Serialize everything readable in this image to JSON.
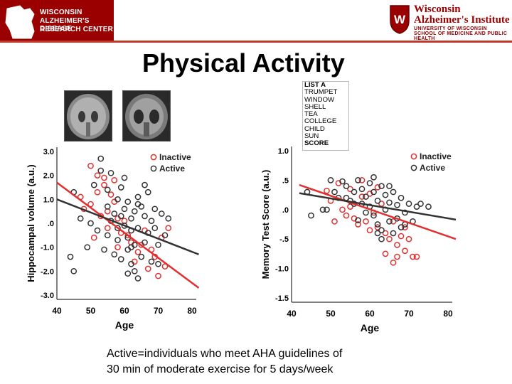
{
  "header": {
    "left_logo_lines": [
      "WISCONSIN",
      "ALZHEIMER'S DISEASE",
      "RESEARCH CENTER"
    ],
    "right_logo_title": [
      "Wisconsin",
      "Alzheimer's Institute"
    ],
    "right_logo_sub": [
      "UNIVERSITY OF WISCONSIN",
      "SCHOOL OF MEDICINE AND PUBLIC HEALTH"
    ],
    "brand_color": "#9b0000"
  },
  "slide_title": "Physical Activity",
  "word_list": {
    "header": "LIST A",
    "items": [
      "TRUMPET",
      "WINDOW",
      "SHELL",
      "TEA",
      "COLLEGE",
      "CHILD",
      "SUN"
    ],
    "footer": "SCORE"
  },
  "footnote": [
    "Active=individuals who meet AHA guidelines of",
    "30 min of moderate exercise for 5 days/week"
  ],
  "chart_data": [
    {
      "type": "scatter",
      "title": "",
      "xlabel": "Age",
      "ylabel": "Hippocampal volume (a.u.)",
      "xlim": [
        40,
        80
      ],
      "ylim": [
        -3.0,
        3.0
      ],
      "x_ticks": [
        "40",
        "50",
        "60",
        "70",
        "80"
      ],
      "y_ticks": [
        "3.0",
        "2.0",
        "1.0",
        ".0",
        "-1.0",
        "-2.0",
        "-3.0"
      ],
      "y_tick_values": [
        3,
        2,
        1,
        0,
        -1,
        -2,
        -3
      ],
      "legend_position": "top-right",
      "series": [
        {
          "name": "Inactive",
          "color": "#e03030",
          "regression": [
            [
              40,
              1.7
            ],
            [
              82,
              -2.7
            ]
          ],
          "points": [
            [
              47,
              1.1
            ],
            [
              48,
              0.6
            ],
            [
              50,
              0.8
            ],
            [
              52,
              1.3
            ],
            [
              52,
              2.0
            ],
            [
              53,
              0.3
            ],
            [
              54,
              1.6
            ],
            [
              55,
              0.5
            ],
            [
              56,
              1.2
            ],
            [
              57,
              0.9
            ],
            [
              58,
              0.2
            ],
            [
              59,
              -0.4
            ],
            [
              60,
              0.1
            ],
            [
              62,
              -0.8
            ],
            [
              63,
              -1.6
            ],
            [
              64,
              -1.2
            ],
            [
              66,
              -0.3
            ],
            [
              67,
              -1.9
            ],
            [
              68,
              -1.1
            ],
            [
              70,
              -2.2
            ],
            [
              71,
              -0.6
            ],
            [
              72,
              -1.8
            ],
            [
              73,
              -0.2
            ],
            [
              51,
              -0.6
            ],
            [
              55,
              -0.2
            ],
            [
              58,
              -1.0
            ],
            [
              61,
              -0.5
            ],
            [
              65,
              -0.9
            ],
            [
              69,
              -1.4
            ],
            [
              54,
              1.9
            ],
            [
              50,
              2.4
            ],
            [
              57,
              1.8
            ]
          ]
        },
        {
          "name": "Active",
          "color": "#333333",
          "regression": [
            [
              40,
              1.0
            ],
            [
              82,
              -1.3
            ]
          ],
          "points": [
            [
              44,
              -1.4
            ],
            [
              45,
              1.3
            ],
            [
              45,
              -2.0
            ],
            [
              47,
              0.2
            ],
            [
              49,
              -1.0
            ],
            [
              50,
              0.0
            ],
            [
              51,
              1.6
            ],
            [
              52,
              -0.3
            ],
            [
              53,
              2.7
            ],
            [
              53,
              2.2
            ],
            [
              54,
              -1.1
            ],
            [
              55,
              0.7
            ],
            [
              55,
              -0.5
            ],
            [
              56,
              2.1
            ],
            [
              56,
              0.1
            ],
            [
              57,
              0.4
            ],
            [
              57,
              -1.3
            ],
            [
              58,
              1.0
            ],
            [
              58,
              -0.7
            ],
            [
              59,
              0.3
            ],
            [
              59,
              -1.5
            ],
            [
              60,
              0.6
            ],
            [
              60,
              -0.1
            ],
            [
              61,
              0.9
            ],
            [
              61,
              -1.1
            ],
            [
              61,
              -0.6
            ],
            [
              62,
              0.2
            ],
            [
              62,
              -0.3
            ],
            [
              62,
              -1.7
            ],
            [
              63,
              0.5
            ],
            [
              63,
              -0.9
            ],
            [
              64,
              1.1
            ],
            [
              64,
              -0.2
            ],
            [
              64,
              -2.3
            ],
            [
              65,
              0.7
            ],
            [
              65,
              -1.4
            ],
            [
              66,
              0.3
            ],
            [
              66,
              -0.8
            ],
            [
              67,
              1.3
            ],
            [
              67,
              -0.4
            ],
            [
              68,
              0.1
            ],
            [
              68,
              -1.6
            ],
            [
              69,
              0.6
            ],
            [
              69,
              -0.2
            ],
            [
              70,
              -0.9
            ],
            [
              71,
              0.4
            ],
            [
              72,
              -0.5
            ],
            [
              73,
              0.2
            ],
            [
              60,
              1.9
            ],
            [
              63,
              -2.0
            ],
            [
              58,
              -0.2
            ],
            [
              66,
              1.6
            ],
            [
              70,
              -1.7
            ],
            [
              55,
              1.4
            ],
            [
              61,
              -2.1
            ],
            [
              59,
              1.5
            ],
            [
              64,
              0.8
            ],
            [
              62,
              -1.0
            ]
          ]
        }
      ]
    },
    {
      "type": "scatter",
      "title": "",
      "xlabel": "Age",
      "ylabel": "Memory Test Score (a.u.)",
      "xlim": [
        40,
        80
      ],
      "ylim": [
        -1.5,
        1.0
      ],
      "x_ticks": [
        "40",
        "50",
        "60",
        "70",
        "80"
      ],
      "y_ticks": [
        "1.0",
        ".5",
        ".0",
        "-.5",
        "-1.0",
        "-1.5"
      ],
      "y_tick_values": [
        1.0,
        0.5,
        0.0,
        -0.5,
        -1.0,
        -1.5
      ],
      "legend_position": "top-right",
      "series": [
        {
          "name": "Inactive",
          "color": "#e03030",
          "regression": [
            [
              42,
              0.42
            ],
            [
              82,
              -0.5
            ]
          ],
          "points": [
            [
              49,
              0.32
            ],
            [
              50,
              0.15
            ],
            [
              52,
              0.45
            ],
            [
              53,
              0.0
            ],
            [
              54,
              -0.1
            ],
            [
              55,
              0.35
            ],
            [
              56,
              -0.15
            ],
            [
              57,
              -0.25
            ],
            [
              58,
              0.22
            ],
            [
              59,
              -0.2
            ],
            [
              60,
              -0.35
            ],
            [
              61,
              -0.05
            ],
            [
              62,
              -0.3
            ],
            [
              63,
              0.1
            ],
            [
              64,
              -0.4
            ],
            [
              65,
              -0.5
            ],
            [
              66,
              -0.2
            ],
            [
              67,
              -0.6
            ],
            [
              68,
              -0.45
            ],
            [
              69,
              -0.7
            ],
            [
              70,
              -0.5
            ],
            [
              71,
              -0.8
            ],
            [
              72,
              -0.8
            ],
            [
              66,
              -0.9
            ],
            [
              64,
              -0.75
            ],
            [
              67,
              -0.8
            ],
            [
              51,
              -0.2
            ],
            [
              58,
              0.5
            ],
            [
              62,
              0.38
            ],
            [
              69,
              -0.3
            ],
            [
              55,
              0.05
            ],
            [
              60,
              0.27
            ]
          ]
        },
        {
          "name": "Active",
          "color": "#333333",
          "regression": [
            [
              42,
              0.28
            ],
            [
              82,
              -0.17
            ]
          ],
          "points": [
            [
              44,
              0.3
            ],
            [
              45,
              -0.1
            ],
            [
              48,
              0.0
            ],
            [
              49,
              0.0
            ],
            [
              50,
              0.5
            ],
            [
              51,
              0.3
            ],
            [
              52,
              0.2
            ],
            [
              53,
              0.48
            ],
            [
              54,
              0.4
            ],
            [
              55,
              0.15
            ],
            [
              56,
              0.3
            ],
            [
              57,
              0.5
            ],
            [
              58,
              0.1
            ],
            [
              58,
              0.35
            ],
            [
              59,
              0.22
            ],
            [
              60,
              0.45
            ],
            [
              60,
              0.05
            ],
            [
              61,
              -0.1
            ],
            [
              61,
              0.3
            ],
            [
              62,
              0.15
            ],
            [
              62,
              -0.25
            ],
            [
              63,
              0.4
            ],
            [
              63,
              -0.35
            ],
            [
              64,
              0.0
            ],
            [
              64,
              0.25
            ],
            [
              65,
              -0.2
            ],
            [
              65,
              0.12
            ],
            [
              66,
              -0.4
            ],
            [
              66,
              0.3
            ],
            [
              67,
              0.08
            ],
            [
              67,
              -0.15
            ],
            [
              68,
              0.2
            ],
            [
              68,
              -0.3
            ],
            [
              69,
              -0.05
            ],
            [
              70,
              0.1
            ],
            [
              71,
              -0.2
            ],
            [
              72,
              0.05
            ],
            [
              73,
              0.1
            ],
            [
              75,
              0.05
            ],
            [
              59,
              -0.05
            ],
            [
              61,
              0.55
            ],
            [
              63,
              -0.5
            ],
            [
              65,
              0.4
            ],
            [
              57,
              -0.18
            ],
            [
              62,
              -0.4
            ],
            [
              69,
              -0.25
            ],
            [
              56,
              0.1
            ],
            [
              54,
              0.2
            ]
          ]
        }
      ]
    }
  ]
}
